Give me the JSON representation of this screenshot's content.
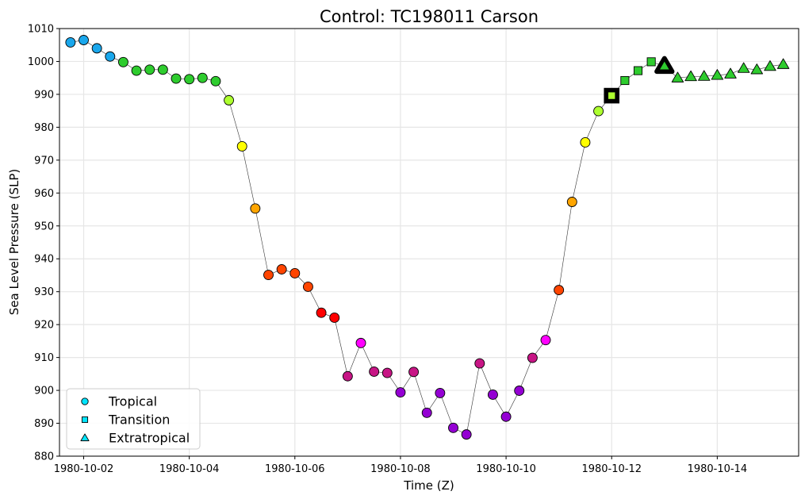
{
  "chart_data": {
    "type": "scatter",
    "title": "Control: TC198011 Carson",
    "xlabel": "Time (Z)",
    "ylabel": "Sea Level Pressure (SLP)",
    "ylim": [
      880,
      1010
    ],
    "yticks": [
      880,
      890,
      900,
      910,
      920,
      930,
      940,
      950,
      960,
      970,
      980,
      990,
      1000,
      1010
    ],
    "xlim": [
      "1980-10-01T13:00",
      "1980-10-15T13:00"
    ],
    "xticks": [
      "1980-10-02",
      "1980-10-04",
      "1980-10-06",
      "1980-10-08",
      "1980-10-10",
      "1980-10-12",
      "1980-10-14"
    ],
    "grid": true,
    "legend_position": "lower-left",
    "legend": [
      {
        "label": "Tropical",
        "marker": "circle",
        "color": "#00e5ff"
      },
      {
        "label": "Transition",
        "marker": "square",
        "color": "#00e5ff"
      },
      {
        "label": "Extratropical",
        "marker": "triangle",
        "color": "#00e5ff"
      }
    ],
    "series": [
      {
        "points": [
          {
            "x": "1980-10-01T18:00",
            "y": 1005.8,
            "phase": "tropical",
            "color": "#1aa7ec"
          },
          {
            "x": "1980-10-02T00:00",
            "y": 1006.5,
            "phase": "tropical",
            "color": "#1aa7ec"
          },
          {
            "x": "1980-10-02T06:00",
            "y": 1004.0,
            "phase": "tropical",
            "color": "#1aa7ec"
          },
          {
            "x": "1980-10-02T12:00",
            "y": 1001.5,
            "phase": "tropical",
            "color": "#1aa7ec"
          },
          {
            "x": "1980-10-02T18:00",
            "y": 999.8,
            "phase": "tropical",
            "color": "#2ecc2e"
          },
          {
            "x": "1980-10-03T00:00",
            "y": 997.2,
            "phase": "tropical",
            "color": "#2ecc2e"
          },
          {
            "x": "1980-10-03T06:00",
            "y": 997.5,
            "phase": "tropical",
            "color": "#2ecc2e"
          },
          {
            "x": "1980-10-03T12:00",
            "y": 997.5,
            "phase": "tropical",
            "color": "#2ecc2e"
          },
          {
            "x": "1980-10-03T18:00",
            "y": 994.8,
            "phase": "tropical",
            "color": "#2ecc2e"
          },
          {
            "x": "1980-10-04T00:00",
            "y": 994.6,
            "phase": "tropical",
            "color": "#2ecc2e"
          },
          {
            "x": "1980-10-04T06:00",
            "y": 995.0,
            "phase": "tropical",
            "color": "#2ecc2e"
          },
          {
            "x": "1980-10-04T12:00",
            "y": 994.0,
            "phase": "tropical",
            "color": "#2ecc2e"
          },
          {
            "x": "1980-10-04T18:00",
            "y": 988.2,
            "phase": "tropical",
            "color": "#adff2f"
          },
          {
            "x": "1980-10-05T00:00",
            "y": 974.2,
            "phase": "tropical",
            "color": "#ffff00"
          },
          {
            "x": "1980-10-05T06:00",
            "y": 955.3,
            "phase": "tropical",
            "color": "#ffa500"
          },
          {
            "x": "1980-10-05T12:00",
            "y": 935.1,
            "phase": "tropical",
            "color": "#ff4500"
          },
          {
            "x": "1980-10-05T18:00",
            "y": 936.8,
            "phase": "tropical",
            "color": "#ff4500"
          },
          {
            "x": "1980-10-06T00:00",
            "y": 935.6,
            "phase": "tropical",
            "color": "#ff4500"
          },
          {
            "x": "1980-10-06T06:00",
            "y": 931.5,
            "phase": "tropical",
            "color": "#ff4500"
          },
          {
            "x": "1980-10-06T12:00",
            "y": 923.6,
            "phase": "tropical",
            "color": "#ff0000"
          },
          {
            "x": "1980-10-06T18:00",
            "y": 922.1,
            "phase": "tropical",
            "color": "#ff0000"
          },
          {
            "x": "1980-10-07T00:00",
            "y": 904.3,
            "phase": "tropical",
            "color": "#c71585"
          },
          {
            "x": "1980-10-07T06:00",
            "y": 914.4,
            "phase": "tropical",
            "color": "#ff00ff"
          },
          {
            "x": "1980-10-07T12:00",
            "y": 905.7,
            "phase": "tropical",
            "color": "#c71585"
          },
          {
            "x": "1980-10-07T18:00",
            "y": 905.3,
            "phase": "tropical",
            "color": "#c71585"
          },
          {
            "x": "1980-10-08T00:00",
            "y": 899.4,
            "phase": "tropical",
            "color": "#9400d3"
          },
          {
            "x": "1980-10-08T06:00",
            "y": 905.6,
            "phase": "tropical",
            "color": "#c71585"
          },
          {
            "x": "1980-10-08T12:00",
            "y": 893.2,
            "phase": "tropical",
            "color": "#9400d3"
          },
          {
            "x": "1980-10-08T18:00",
            "y": 899.2,
            "phase": "tropical",
            "color": "#9400d3"
          },
          {
            "x": "1980-10-09T00:00",
            "y": 888.6,
            "phase": "tropical",
            "color": "#9400d3"
          },
          {
            "x": "1980-10-09T06:00",
            "y": 886.6,
            "phase": "tropical",
            "color": "#9400d3"
          },
          {
            "x": "1980-10-09T12:00",
            "y": 908.2,
            "phase": "tropical",
            "color": "#c71585"
          },
          {
            "x": "1980-10-09T18:00",
            "y": 898.7,
            "phase": "tropical",
            "color": "#9400d3"
          },
          {
            "x": "1980-10-10T00:00",
            "y": 892.0,
            "phase": "tropical",
            "color": "#9400d3"
          },
          {
            "x": "1980-10-10T06:00",
            "y": 899.9,
            "phase": "tropical",
            "color": "#9400d3"
          },
          {
            "x": "1980-10-10T12:00",
            "y": 909.9,
            "phase": "tropical",
            "color": "#c71585"
          },
          {
            "x": "1980-10-10T18:00",
            "y": 915.3,
            "phase": "tropical",
            "color": "#ff00ff"
          },
          {
            "x": "1980-10-11T00:00",
            "y": 930.5,
            "phase": "tropical",
            "color": "#ff4500"
          },
          {
            "x": "1980-10-11T06:00",
            "y": 957.3,
            "phase": "tropical",
            "color": "#ffa500"
          },
          {
            "x": "1980-10-11T12:00",
            "y": 975.4,
            "phase": "tropical",
            "color": "#ffff00"
          },
          {
            "x": "1980-10-11T18:00",
            "y": 984.9,
            "phase": "tropical",
            "color": "#adff2f"
          },
          {
            "x": "1980-10-12T00:00",
            "y": 989.6,
            "phase": "transition",
            "color": "#adff2f",
            "highlight": true
          },
          {
            "x": "1980-10-12T06:00",
            "y": 994.2,
            "phase": "transition",
            "color": "#2ecc2e"
          },
          {
            "x": "1980-10-12T12:00",
            "y": 997.2,
            "phase": "transition",
            "color": "#2ecc2e"
          },
          {
            "x": "1980-10-12T18:00",
            "y": 999.9,
            "phase": "transition",
            "color": "#2ecc2e"
          },
          {
            "x": "1980-10-13T00:00",
            "y": 998.6,
            "phase": "extratropical",
            "color": "#2ecc2e",
            "highlight": true
          },
          {
            "x": "1980-10-13T06:00",
            "y": 995.0,
            "phase": "extratropical",
            "color": "#2ecc2e"
          },
          {
            "x": "1980-10-13T12:00",
            "y": 995.4,
            "phase": "extratropical",
            "color": "#2ecc2e"
          },
          {
            "x": "1980-10-13T18:00",
            "y": 995.5,
            "phase": "extratropical",
            "color": "#2ecc2e"
          },
          {
            "x": "1980-10-14T00:00",
            "y": 995.8,
            "phase": "extratropical",
            "color": "#2ecc2e"
          },
          {
            "x": "1980-10-14T06:00",
            "y": 996.2,
            "phase": "extratropical",
            "color": "#2ecc2e"
          },
          {
            "x": "1980-10-14T12:00",
            "y": 997.9,
            "phase": "extratropical",
            "color": "#2ecc2e"
          },
          {
            "x": "1980-10-14T18:00",
            "y": 997.5,
            "phase": "extratropical",
            "color": "#2ecc2e"
          },
          {
            "x": "1980-10-15T00:00",
            "y": 998.5,
            "phase": "extratropical",
            "color": "#2ecc2e"
          },
          {
            "x": "1980-10-15T06:00",
            "y": 999.1,
            "phase": "extratropical",
            "color": "#2ecc2e"
          }
        ]
      }
    ]
  }
}
